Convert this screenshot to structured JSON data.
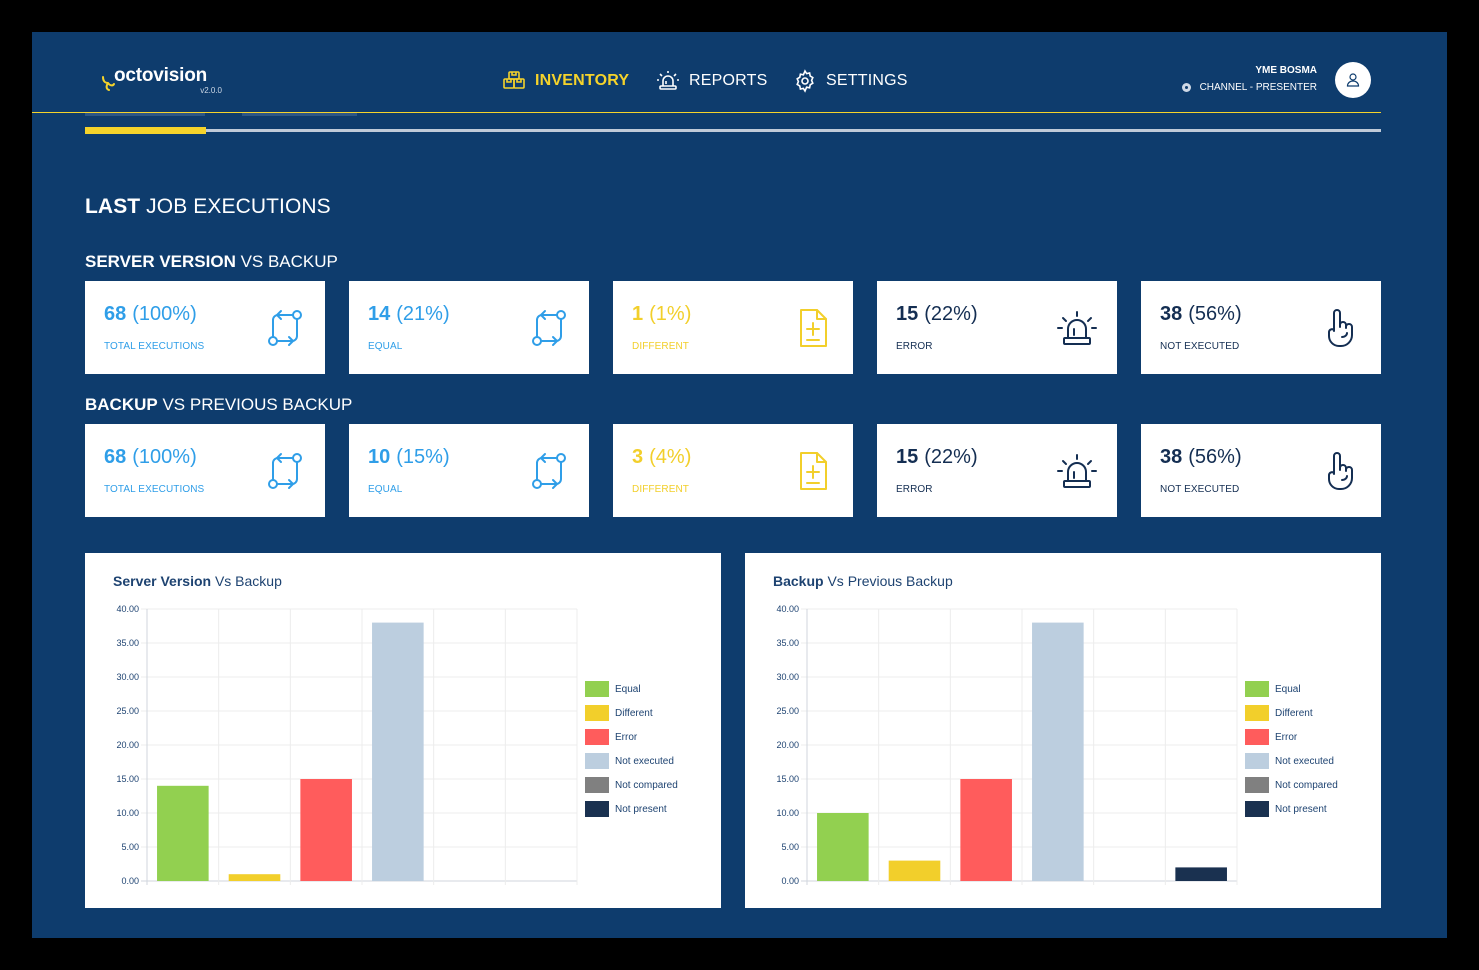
{
  "header": {
    "logo_text": "octovision",
    "version": "v2.0.0",
    "nav": [
      {
        "label": "INVENTORY",
        "active": true
      },
      {
        "label": "REPORTS",
        "active": false
      },
      {
        "label": "SETTINGS",
        "active": false
      }
    ],
    "user_name": "YME BOSMA",
    "user_channel": "CHANNEL - PRESENTER"
  },
  "colors": {
    "background": "#0e3c6d",
    "accent": "#f5d32b",
    "blue": "#2f9ee8",
    "navy": "#142e52",
    "equal": "#92d050",
    "different": "#f2cf2b",
    "error": "#ff5c5c",
    "not_executed": "#bccedf",
    "not_compared": "#808080",
    "not_present": "#1a3150"
  },
  "page_title": {
    "bold": "LAST",
    "rest": " JOB EXECUTIONS"
  },
  "sections": [
    {
      "title_bold": "SERVER VERSION",
      "title_rest": " VS BACKUP",
      "cards": [
        {
          "value": "68",
          "pct": "(100%)",
          "label": "TOTAL EXECUTIONS",
          "icon": "sync-icon"
        },
        {
          "value": "14",
          "pct": "(21%)",
          "label": "EQUAL",
          "icon": "sync-icon"
        },
        {
          "value": "1",
          "pct": "(1%)",
          "label": "DIFFERENT",
          "icon": "diff-file-icon"
        },
        {
          "value": "15",
          "pct": "(22%)",
          "label": "ERROR",
          "icon": "alarm-icon"
        },
        {
          "value": "38",
          "pct": "(56%)",
          "label": "NOT EXECUTED",
          "icon": "hand-icon"
        }
      ]
    },
    {
      "title_bold": "BACKUP",
      "title_rest": " VS PREVIOUS BACKUP",
      "cards": [
        {
          "value": "68",
          "pct": "(100%)",
          "label": "TOTAL EXECUTIONS",
          "icon": "sync-icon"
        },
        {
          "value": "10",
          "pct": "(15%)",
          "label": "EQUAL",
          "icon": "sync-icon"
        },
        {
          "value": "3",
          "pct": "(4%)",
          "label": "DIFFERENT",
          "icon": "diff-file-icon"
        },
        {
          "value": "15",
          "pct": "(22%)",
          "label": "ERROR",
          "icon": "alarm-icon"
        },
        {
          "value": "38",
          "pct": "(56%)",
          "label": "NOT EXECUTED",
          "icon": "hand-icon"
        }
      ]
    }
  ],
  "chart_data": [
    {
      "type": "bar",
      "title_bold": "Server Version",
      "title_rest": " Vs Backup",
      "categories": [
        "Equal",
        "Different",
        "Error",
        "Not executed",
        "Not compared",
        "Not present"
      ],
      "values": [
        14,
        1,
        15,
        38,
        0,
        0
      ],
      "ylim": [
        0,
        40
      ],
      "yticks": [
        "0.00",
        "5.00",
        "10.00",
        "15.00",
        "20.00",
        "25.00",
        "30.00",
        "35.00",
        "40.00"
      ],
      "legend_position": "right",
      "grid": true
    },
    {
      "type": "bar",
      "title_bold": "Backup",
      "title_rest": " Vs Previous Backup",
      "categories": [
        "Equal",
        "Different",
        "Error",
        "Not executed",
        "Not compared",
        "Not present"
      ],
      "values": [
        10,
        3,
        15,
        38,
        0,
        2
      ],
      "ylim": [
        0,
        40
      ],
      "yticks": [
        "0.00",
        "5.00",
        "10.00",
        "15.00",
        "20.00",
        "25.00",
        "30.00",
        "35.00",
        "40.00"
      ],
      "legend_position": "right",
      "grid": true
    }
  ]
}
